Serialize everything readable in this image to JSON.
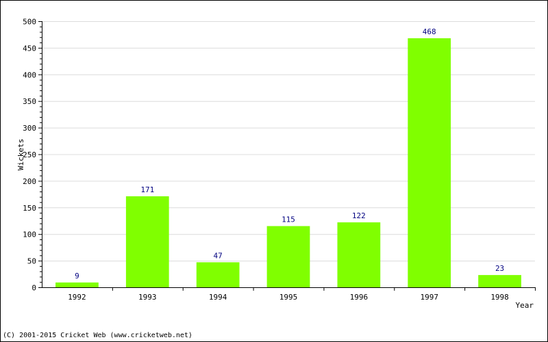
{
  "chart_data": {
    "type": "bar",
    "categories": [
      "1992",
      "1993",
      "1994",
      "1995",
      "1996",
      "1997",
      "1998"
    ],
    "values": [
      9,
      171,
      47,
      115,
      122,
      468,
      23
    ],
    "xlabel": "Year",
    "ylabel": "Wickets",
    "ylim": [
      0,
      500
    ],
    "yticks": [
      "0",
      "50",
      "100",
      "150",
      "200",
      "250",
      "300",
      "350",
      "400",
      "450",
      "500"
    ],
    "grid": true,
    "bar_color": "#80ff00",
    "value_label_color": "#000080"
  },
  "footer": {
    "copyright": "(C) 2001-2015 Cricket Web (www.cricketweb.net)"
  }
}
